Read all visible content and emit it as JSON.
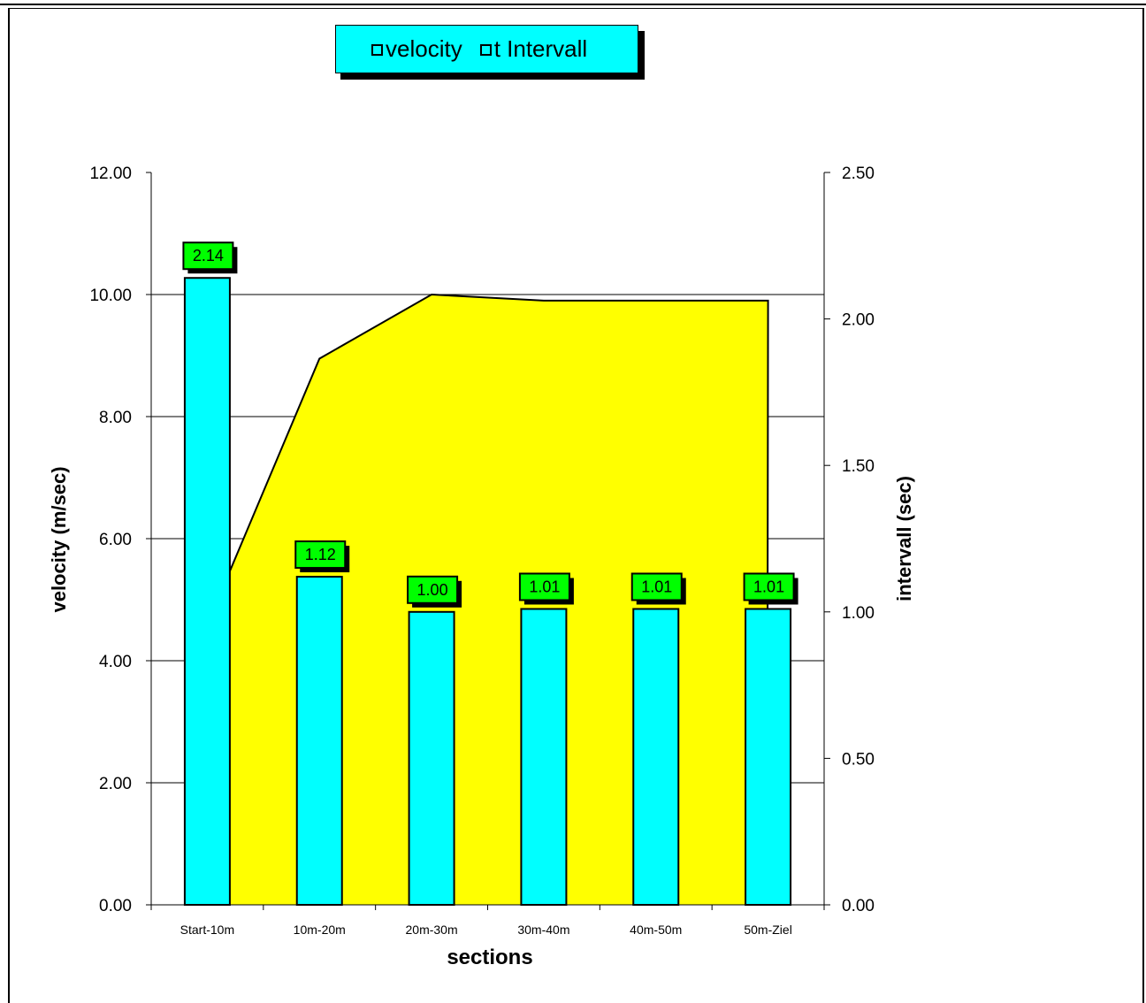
{
  "chart_data": {
    "type": "bar",
    "categories": [
      "Start-10m",
      "10m-20m",
      "20m-30m",
      "30m-40m",
      "40m-50m",
      "50m-Ziel"
    ],
    "series": [
      {
        "name": "velocity",
        "chart": "area",
        "axis": "left",
        "values": [
          5.4,
          8.95,
          10.0,
          9.9,
          9.9,
          9.9
        ],
        "color": "#ffff00"
      },
      {
        "name": "t Intervall",
        "chart": "bar",
        "axis": "right",
        "values": [
          2.14,
          1.12,
          1.0,
          1.01,
          1.01,
          1.01
        ],
        "color": "#00ffff"
      }
    ],
    "data_labels": [
      "2.14",
      "1.12",
      "1.00",
      "1.01",
      "1.01",
      "1.01"
    ],
    "xlabel": "sections",
    "ylabel": "velocity (m/sec)",
    "y2label": "intervall (sec)",
    "ylim": [
      0,
      12
    ],
    "y2lim": [
      0,
      2.5
    ],
    "yticks": [
      "0.00",
      "2.00",
      "4.00",
      "6.00",
      "8.00",
      "10.00",
      "12.00"
    ],
    "y2ticks": [
      "0.00",
      "0.50",
      "1.00",
      "1.50",
      "2.00",
      "2.50"
    ],
    "grid": "horizontal major lines on left axis",
    "legend": {
      "placement": "top-center",
      "entries": [
        "velocity",
        "t Intervall"
      ]
    },
    "colors": {
      "area": "#ffff00",
      "bar": "#00ffff",
      "label_bg": "#00ff00",
      "legend_bg": "#00ffff"
    }
  }
}
